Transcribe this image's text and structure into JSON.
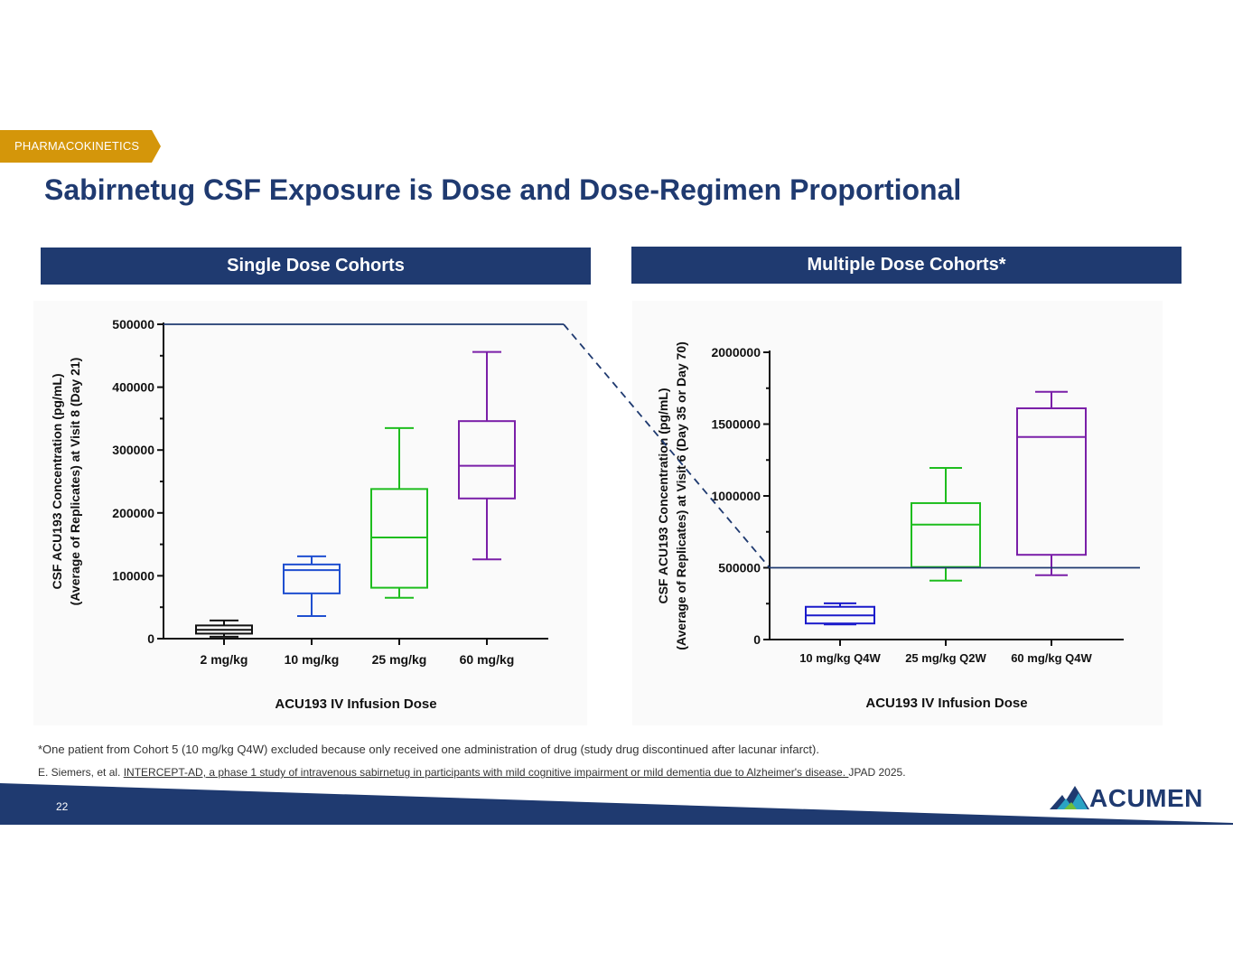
{
  "tag": "PHARMACOKINETICS",
  "title": "Sabirnetug CSF Exposure is Dose and Dose-Regimen Proportional",
  "panels": {
    "left_header": "Single Dose Cohorts",
    "right_header": "Multiple Dose Cohorts*"
  },
  "colors": {
    "navy": "#1f3a70",
    "gold": "#d4960a",
    "black": "#111111",
    "blue": "#1f4fd0",
    "green": "#1ebd1e",
    "purple": "#7a1fa8",
    "darkblue": "#1a1acb"
  },
  "chart_data": [
    {
      "type": "box",
      "title": "Single Dose Cohorts",
      "xlabel": "ACU193 IV Infusion Dose",
      "ylabel": [
        "CSF ACU193 Concentration (pg/mL)",
        "(Average of Replicates) at Visit 8 (Day 21)"
      ],
      "ylim": [
        0,
        500000
      ],
      "yticks": [
        0,
        100000,
        200000,
        300000,
        400000,
        500000
      ],
      "ytick_labels": [
        "0",
        "100000",
        "200000",
        "300000",
        "400000",
        "500000"
      ],
      "categories": [
        "2 mg/kg",
        "10 mg/kg",
        "25 mg/kg",
        "60 mg/kg"
      ],
      "boxes": [
        {
          "name": "2 mg/kg",
          "min": 3000,
          "q1": 8000,
          "median": 14000,
          "q3": 21000,
          "max": 29000,
          "color": "#111111"
        },
        {
          "name": "10 mg/kg",
          "min": 36000,
          "q1": 72000,
          "median": 109000,
          "q3": 118000,
          "max": 131000,
          "color": "#1f4fd0"
        },
        {
          "name": "25 mg/kg",
          "min": 65000,
          "q1": 81000,
          "median": 161000,
          "q3": 238000,
          "max": 335000,
          "color": "#1ebd1e"
        },
        {
          "name": "60 mg/kg",
          "min": 126000,
          "q1": 223000,
          "median": 275000,
          "q3": 346000,
          "max": 456000,
          "color": "#7a1fa8"
        }
      ]
    },
    {
      "type": "box",
      "title": "Multiple Dose Cohorts*",
      "xlabel": "ACU193 IV Infusion Dose",
      "ylabel": [
        "CSF ACU193 Concentration (pg/mL)",
        "(Average of Replicates) at  Visit 6 (Day 35 or  Day 70)"
      ],
      "ylim": [
        0,
        2000000
      ],
      "yticks": [
        0,
        500000,
        1000000,
        1500000,
        2000000
      ],
      "ytick_labels": [
        "0",
        "500000",
        "1000000",
        "1500000",
        "2000000"
      ],
      "categories": [
        "10 mg/kg Q4W",
        "25 mg/kg Q2W",
        "60 mg/kg Q4W"
      ],
      "boxes": [
        {
          "name": "10 mg/kg Q4W",
          "min": 105000,
          "q1": 112000,
          "median": 168000,
          "q3": 228000,
          "max": 252000,
          "color": "#1a1acb"
        },
        {
          "name": "25 mg/kg Q2W",
          "min": 410000,
          "q1": 505000,
          "median": 800000,
          "q3": 950000,
          "max": 1195000,
          "color": "#1ebd1e"
        },
        {
          "name": "60 mg/kg Q4W",
          "min": 448000,
          "q1": 590000,
          "median": 1410000,
          "q3": 1610000,
          "max": 1725000,
          "color": "#7a1fa8"
        }
      ],
      "reference_line": 500000
    }
  ],
  "footnote": "*One patient from Cohort 5 (10 mg/kg Q4W) excluded because only received one administration of drug (study drug discontinued after lacunar infarct).",
  "citation": {
    "prefix": "E. Siemers, et al. ",
    "link": "INTERCEPT-AD, a phase 1 study of intravenous sabirnetug in participants with mild cognitive impairment or mild dementia due to Alzheimer's disease. ",
    "suffix": "JPAD 2025."
  },
  "footer": {
    "page_number": "22",
    "logo_text": "ACUMEN"
  }
}
